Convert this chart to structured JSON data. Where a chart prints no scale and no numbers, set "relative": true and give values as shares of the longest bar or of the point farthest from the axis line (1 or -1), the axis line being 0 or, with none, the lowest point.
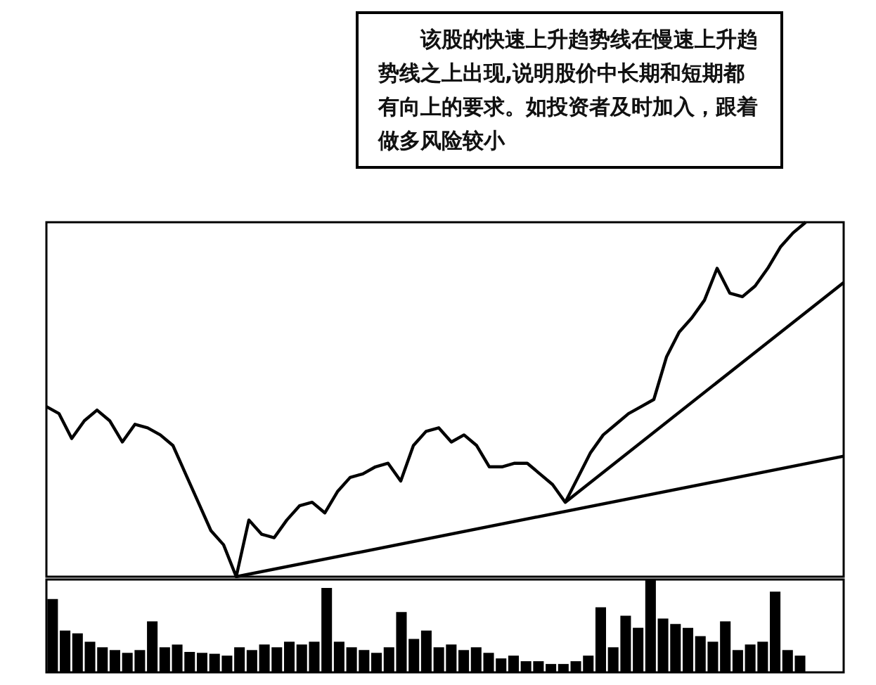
{
  "chart_data": [
    {
      "type": "line",
      "relative": true,
      "marker": "none",
      "annotations": [
        "该股的快速上升趋势线在慢速上升趋势线之上出现,说明股价中长期和短期都有向上的要求。如投资者及时加入，跟着做多风险较小"
      ],
      "categories": [
        null,
        null,
        null,
        null,
        null,
        null,
        null,
        null,
        null,
        null,
        null,
        null,
        null,
        null,
        null,
        null,
        null,
        null,
        null,
        null,
        null,
        null,
        null,
        null,
        null,
        null,
        null,
        null,
        null,
        null,
        null,
        null,
        null,
        null,
        null,
        null,
        null,
        null,
        null,
        null,
        null,
        null,
        null,
        null,
        null,
        null,
        null,
        null,
        null,
        null,
        null,
        null,
        null,
        null,
        null,
        null,
        null,
        null,
        null,
        null,
        null,
        null,
        null,
        null
      ],
      "series": [
        {
          "color": "#000000",
          "values": [
            0.48,
            0.46,
            0.39,
            0.44,
            0.47,
            0.44,
            0.38,
            0.43,
            0.42,
            0.4,
            0.37,
            0.29,
            0.21,
            0.13,
            0.09,
            0,
            0.16,
            0.12,
            0.11,
            0.16,
            0.2,
            0.21,
            0.18,
            0.24,
            0.28,
            0.29,
            0.31,
            0.32,
            0.27,
            0.37,
            0.41,
            0.42,
            0.38,
            0.4,
            0.37,
            0.31,
            0.31,
            0.32,
            0.32,
            0.29,
            0.26,
            0.21,
            0.28,
            0.35,
            0.4,
            0.43,
            0.46,
            0.48,
            0.5,
            0.62,
            0.69,
            0.73,
            0.78,
            0.87,
            0.8,
            0.79,
            0.82,
            0.87,
            0.93,
            0.97,
            1,
            null,
            null,
            null
          ]
        },
        {
          "color": "#000000",
          "values": [
            null,
            null,
            null,
            null,
            null,
            null,
            null,
            null,
            null,
            null,
            null,
            null,
            null,
            null,
            null,
            0,
            null,
            null,
            null,
            null,
            null,
            null,
            null,
            null,
            null,
            null,
            null,
            null,
            null,
            null,
            null,
            null,
            null,
            null,
            null,
            null,
            null,
            null,
            null,
            null,
            null,
            null,
            null,
            null,
            null,
            null,
            null,
            null,
            null,
            null,
            null,
            null,
            null,
            null,
            null,
            null,
            null,
            null,
            null,
            null,
            null,
            null,
            null,
            0.34
          ]
        },
        {
          "color": "#000000",
          "values": [
            null,
            null,
            null,
            null,
            null,
            null,
            null,
            null,
            null,
            null,
            null,
            null,
            null,
            null,
            null,
            null,
            null,
            null,
            null,
            null,
            null,
            null,
            null,
            null,
            null,
            null,
            null,
            null,
            null,
            null,
            null,
            null,
            null,
            null,
            null,
            null,
            null,
            null,
            null,
            null,
            null,
            0.21,
            null,
            null,
            null,
            null,
            null,
            null,
            null,
            null,
            null,
            null,
            null,
            null,
            null,
            null,
            null,
            null,
            null,
            null,
            null,
            null,
            null,
            0.83
          ]
        }
      ]
    },
    {
      "type": "bar",
      "relative": true,
      "categories": [
        null,
        null,
        null,
        null,
        null,
        null,
        null,
        null,
        null,
        null,
        null,
        null,
        null,
        null,
        null,
        null,
        null,
        null,
        null,
        null,
        null,
        null,
        null,
        null,
        null,
        null,
        null,
        null,
        null,
        null,
        null,
        null,
        null,
        null,
        null,
        null,
        null,
        null,
        null,
        null,
        null,
        null,
        null,
        null,
        null,
        null,
        null,
        null,
        null,
        null,
        null,
        null,
        null,
        null,
        null,
        null,
        null,
        null,
        null,
        null,
        null,
        null,
        null,
        null
      ],
      "series": [
        {
          "color": "#000000",
          "values": [
            0.79,
            0.45,
            0.42,
            0.33,
            0.27,
            0.24,
            0.21,
            0.24,
            0.55,
            0.27,
            0.3,
            0.22,
            0.21,
            0.2,
            0.18,
            0.27,
            0.24,
            0.3,
            0.27,
            0.33,
            0.3,
            0.33,
            0.91,
            0.33,
            0.27,
            0.24,
            0.21,
            0.27,
            0.65,
            0.36,
            0.45,
            0.27,
            0.3,
            0.24,
            0.27,
            0.21,
            0.15,
            0.18,
            0.12,
            0.12,
            0.09,
            0.09,
            0.12,
            0.18,
            0.7,
            0.27,
            0.61,
            0.48,
            1,
            0.58,
            0.52,
            0.48,
            0.39,
            0.33,
            0.55,
            0.24,
            0.3,
            0.33,
            0.87,
            0.24,
            0.18,
            null,
            null,
            null
          ]
        }
      ]
    }
  ]
}
